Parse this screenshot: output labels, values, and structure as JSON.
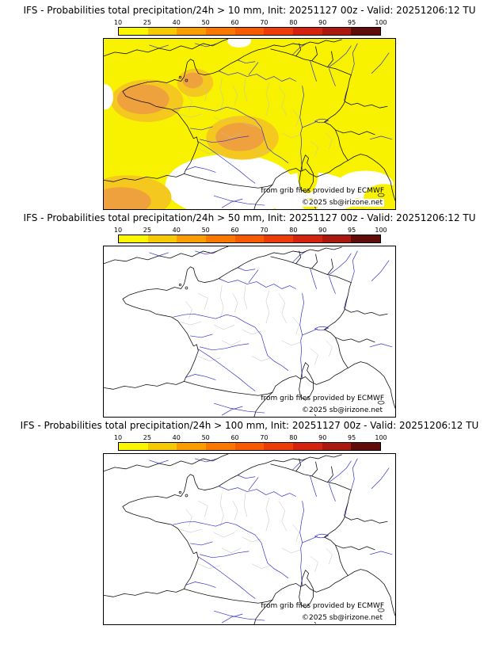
{
  "colorbar": {
    "ticks": [
      "10",
      "25",
      "40",
      "50",
      "60",
      "70",
      "80",
      "90",
      "95",
      "100"
    ],
    "colors": [
      "#faf600",
      "#f6ca00",
      "#fa9e00",
      "#fa7800",
      "#f85a00",
      "#ee3c08",
      "#d42410",
      "#aa1810",
      "#600c08"
    ]
  },
  "map_shading": {
    "base_yellow": "#f8f200",
    "gold": "#f4c81e",
    "orange": "#eea13c"
  },
  "panels": [
    {
      "title": "IFS - Probabilities total precipitation/24h > 10 mm, Init: 20251127 00z - Valid: 20251206:12 TU",
      "attribution": "from grib files provided by ECMWF",
      "copyright": "©2025 sb@irizone.net",
      "shaded": true
    },
    {
      "title": "IFS - Probabilities total precipitation/24h > 50 mm, Init: 20251127 00z - Valid: 20251206:12 TU",
      "attribution": "from grib files provided by ECMWF",
      "copyright": "©2025 sb@irizone.net",
      "shaded": false
    },
    {
      "title": "IFS - Probabilities total precipitation/24h > 100 mm, Init: 20251127 00z - Valid: 20251206:12 TU",
      "attribution": "from grib files provided by ECMWF",
      "copyright": "©2025 sb@irizone.net",
      "shaded": false
    }
  ],
  "chart_data": {
    "type": "heatmap",
    "model": "IFS",
    "variable": "Probabilities total precipitation/24h",
    "thresholds_mm": [
      10,
      50,
      100
    ],
    "init": "20251127 00z",
    "valid": "20251206:12 TU",
    "probability_scale_percent": [
      10,
      25,
      40,
      50,
      60,
      70,
      80,
      90,
      95,
      100
    ],
    "maps": [
      {
        "threshold_mm": 10,
        "shading_summary": "10-25% (yellow) over most of northern and eastern France, Channel and England; 25-60% (gold/orange) over Brittany, west Normandy, Limousin/Massif Central and the Basque/NW-Spain corner; no shading over southwest France and western Mediterranean except Corsica and Ligurian coast"
      },
      {
        "threshold_mm": 50,
        "shading_summary": "no probability shading visible"
      },
      {
        "threshold_mm": 100,
        "shading_summary": "no probability shading visible"
      }
    ]
  }
}
